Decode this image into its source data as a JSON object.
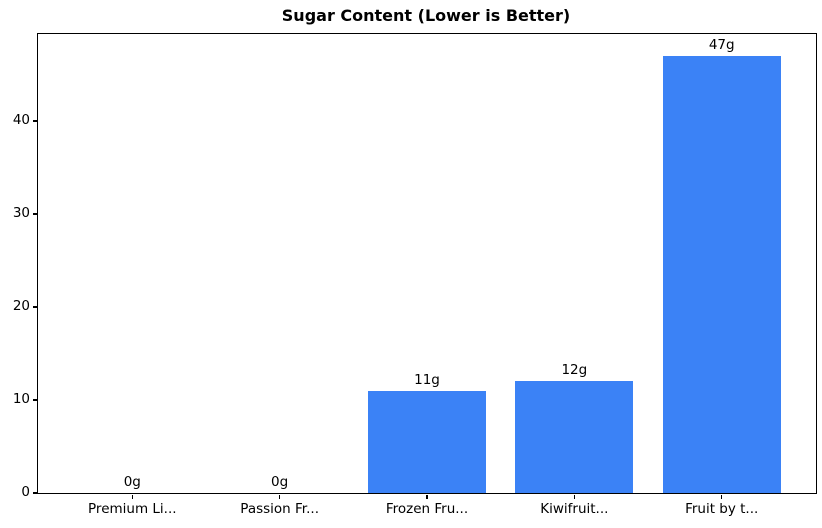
{
  "chart_data": {
    "type": "bar",
    "title": "Sugar Content (Lower is Better)",
    "categories": [
      "Premium Li...",
      "Passion Fr...",
      "Frozen Fru...",
      "Kiwifruit...",
      "Fruit by t..."
    ],
    "values": [
      0,
      0,
      11,
      12,
      47
    ],
    "value_labels": [
      "0g",
      "0g",
      "11g",
      "12g",
      "47g"
    ],
    "series_unit": "g",
    "xlabel": "",
    "ylabel": "",
    "yticks": [
      0,
      10,
      20,
      30,
      40
    ],
    "ylim": [
      0,
      49.35
    ],
    "xlim": [
      -0.64,
      4.64
    ],
    "bar_width_units": 0.8,
    "bar_color": "#3b82f6",
    "text_color": "#000000",
    "axis_color": "#000000",
    "background_color": "#ffffff",
    "grid": false,
    "legend": null
  }
}
